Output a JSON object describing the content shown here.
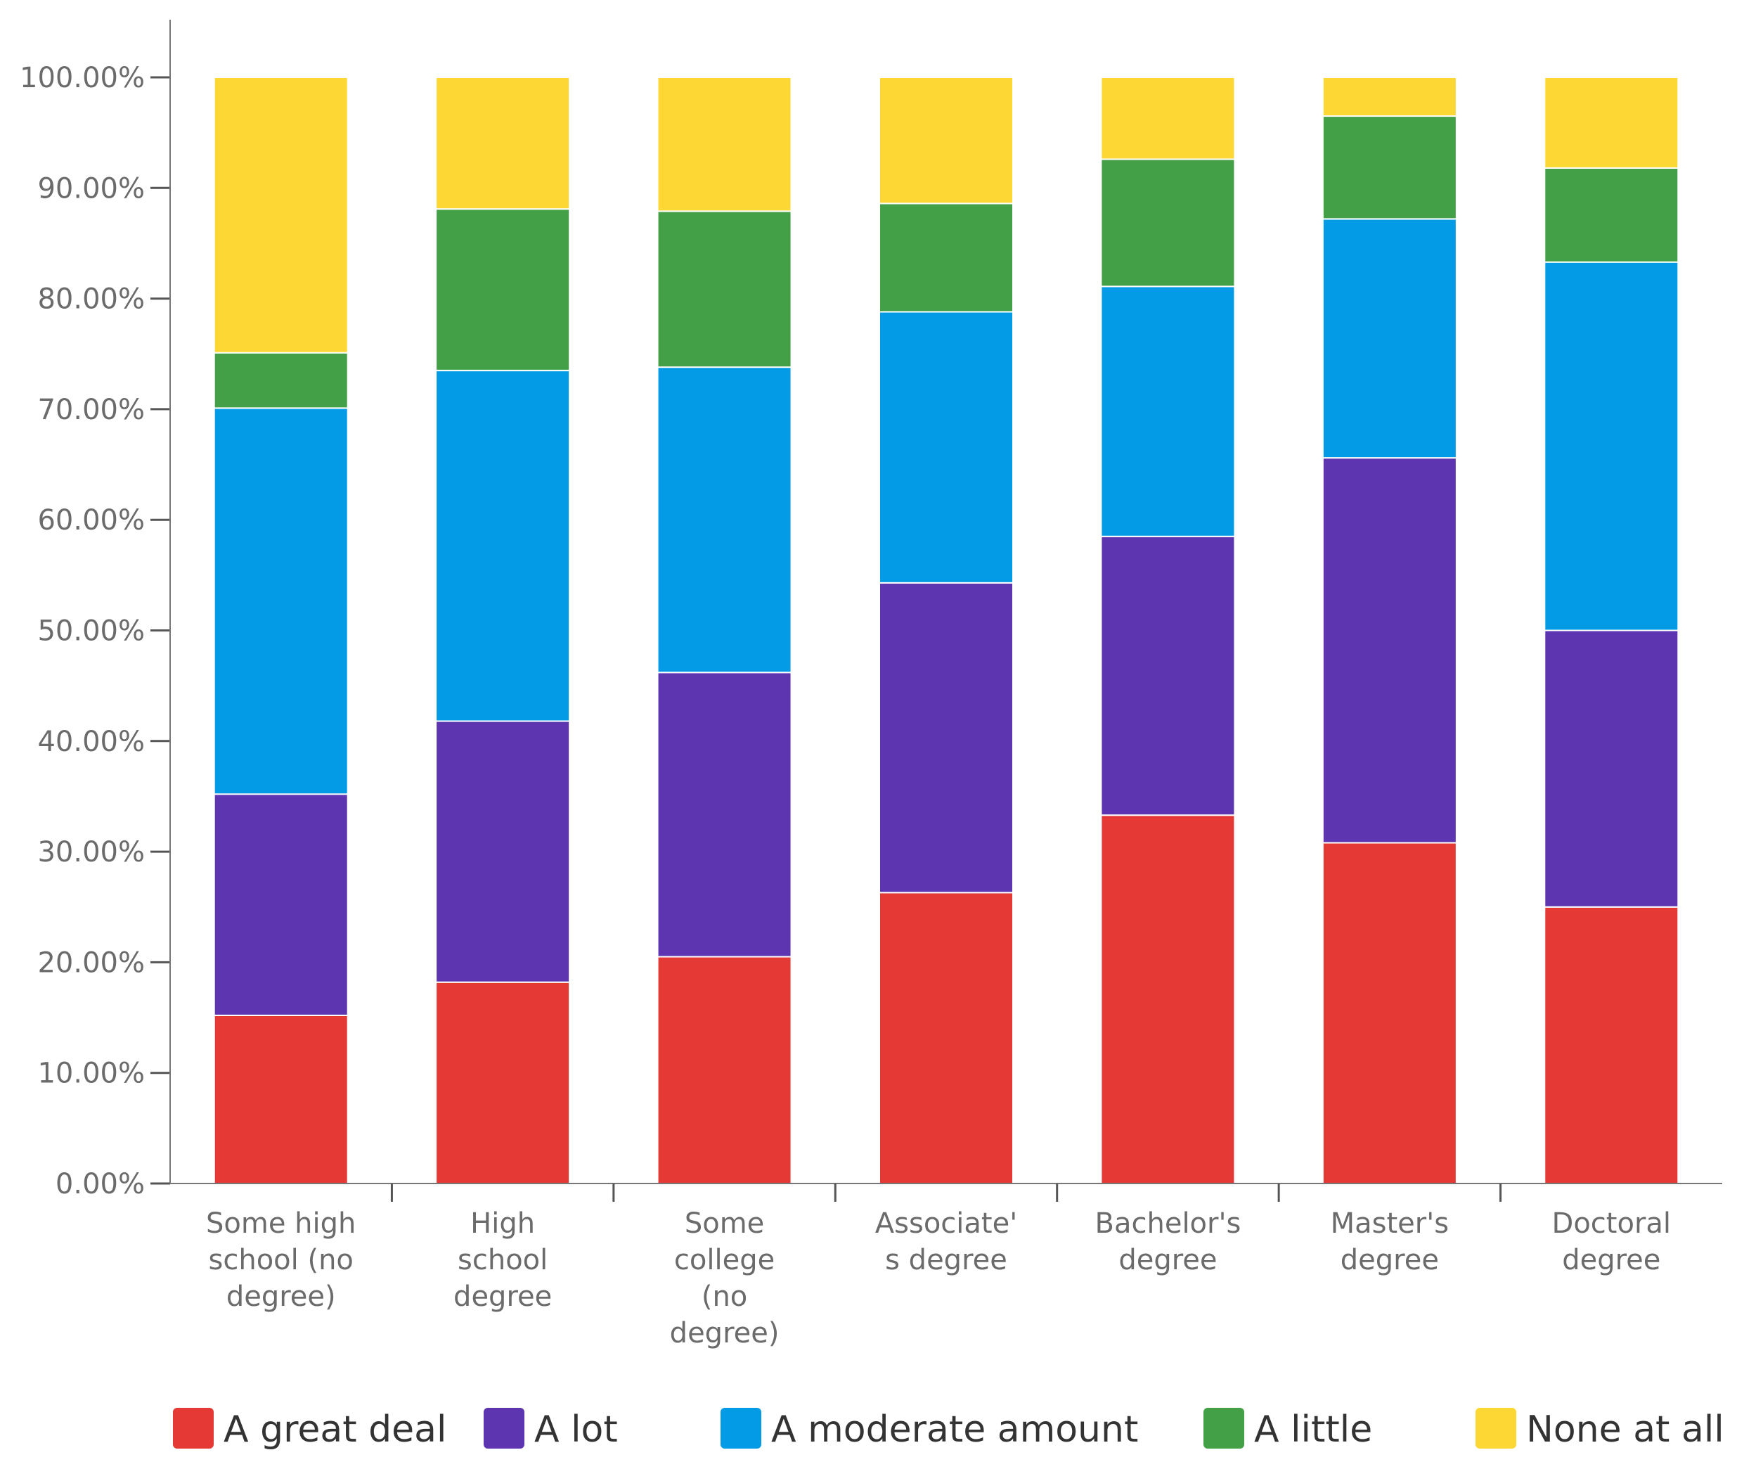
{
  "chart_data": {
    "type": "bar",
    "stacked": true,
    "title": "",
    "xlabel": "",
    "ylabel": "",
    "ylim": [
      0,
      100
    ],
    "y_ticks": [
      "0.00%",
      "10.00%",
      "20.00%",
      "30.00%",
      "40.00%",
      "50.00%",
      "60.00%",
      "70.00%",
      "80.00%",
      "90.00%",
      "100.00%"
    ],
    "categories": [
      [
        "Some high",
        "school (no",
        "degree)"
      ],
      [
        "High",
        "school",
        "degree"
      ],
      [
        "Some",
        "college",
        "(no",
        "degree)"
      ],
      [
        "Associate'",
        "s degree"
      ],
      [
        "Bachelor's",
        "degree"
      ],
      [
        "Master's",
        "degree"
      ],
      [
        "Doctoral",
        "degree"
      ]
    ],
    "series": [
      {
        "name": "A great deal",
        "color": "#e53935",
        "values": [
          15.2,
          18.2,
          20.5,
          26.3,
          33.3,
          30.8,
          25.0
        ]
      },
      {
        "name": "A lot",
        "color": "#5e35b1",
        "values": [
          20.0,
          23.6,
          25.7,
          28.0,
          25.2,
          34.8,
          25.0
        ]
      },
      {
        "name": "A moderate amount",
        "color": "#039be5",
        "values": [
          34.9,
          31.7,
          27.6,
          24.5,
          22.6,
          21.6,
          33.3
        ]
      },
      {
        "name": "A little",
        "color": "#43a047",
        "values": [
          5.0,
          14.6,
          14.1,
          9.8,
          11.5,
          9.3,
          8.5
        ]
      },
      {
        "name": "None at all",
        "color": "#fdd835",
        "values": [
          24.9,
          11.9,
          12.1,
          11.4,
          7.4,
          3.5,
          8.2
        ]
      }
    ],
    "legend_position": "bottom"
  }
}
